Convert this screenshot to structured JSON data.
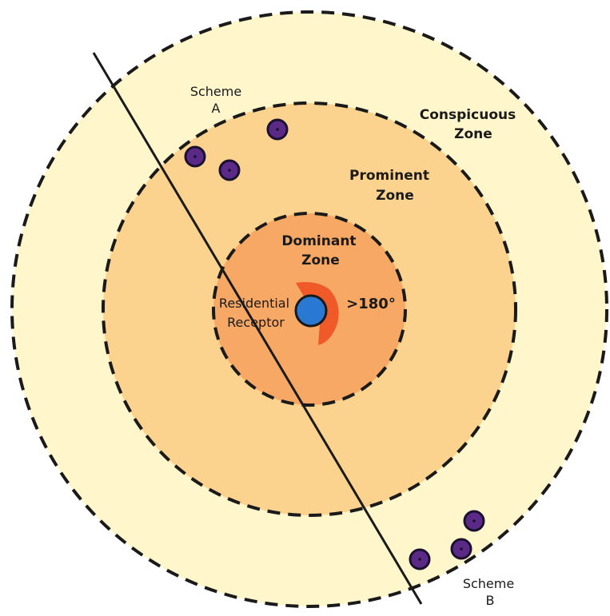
{
  "zones": {
    "conspicuous": {
      "line1": "Conspicuous",
      "line2": "Zone",
      "color": "#fff6cc"
    },
    "prominent": {
      "line1": "Prominent",
      "line2": "Zone",
      "color": "#fbd38f"
    },
    "dominant": {
      "line1": "Dominant",
      "line2": "Zone",
      "color": "#f6a864"
    }
  },
  "receptor": {
    "line1": "Residential",
    "line2": "Receptor",
    "color": "#2979d3"
  },
  "angle_label": ">180°",
  "angle_wedge_color": "#f05a28",
  "schemes": {
    "a": {
      "line1": "Scheme",
      "line2": "A",
      "turbine_count": 3
    },
    "b": {
      "line1": "Scheme",
      "line2": "B",
      "turbine_count": 3
    }
  },
  "turbine_color": "#5b2a86"
}
